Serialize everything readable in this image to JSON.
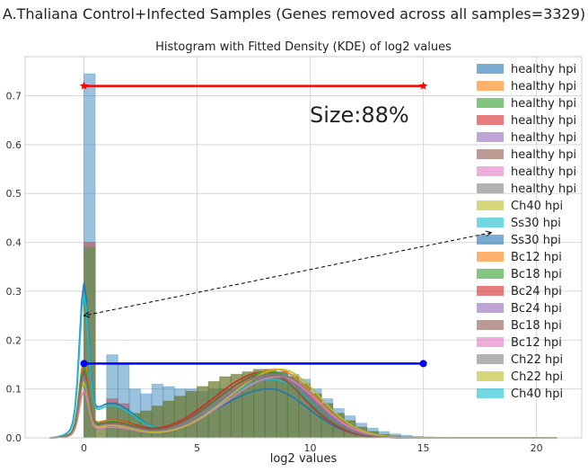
{
  "figure": {
    "suptitle": "A.Thaliana Control+Infected Samples (Genes removed across all samples=3329)"
  },
  "chart_data": {
    "type": "histogram",
    "title": "Histogram with Fitted Density (KDE) of log2 values",
    "xlabel": "log2 values",
    "ylabel": "",
    "xlim": [
      -2.6,
      22
    ],
    "ylim": [
      0,
      0.78
    ],
    "x_ticks": [
      0,
      5,
      10,
      15,
      20
    ],
    "y_ticks": [
      0.0,
      0.1,
      0.2,
      0.3,
      0.4,
      0.5,
      0.6,
      0.7
    ],
    "grid": true,
    "legend_position": "top-right",
    "annotation_text": "Size:88%",
    "legend_entries": [
      {
        "label": "healthy hpi",
        "color": "#1f77b4"
      },
      {
        "label": "healthy hpi",
        "color": "#ff7f0e"
      },
      {
        "label": "healthy hpi",
        "color": "#2ca02c"
      },
      {
        "label": "healthy hpi",
        "color": "#d62728"
      },
      {
        "label": "healthy hpi",
        "color": "#9467bd"
      },
      {
        "label": "healthy hpi",
        "color": "#8c564b"
      },
      {
        "label": "healthy hpi",
        "color": "#e377c2"
      },
      {
        "label": "healthy hpi",
        "color": "#7f7f7f"
      },
      {
        "label": "Ch40 hpi",
        "color": "#bcbd22"
      },
      {
        "label": "Ss30 hpi",
        "color": "#17becf"
      },
      {
        "label": "Ss30 hpi",
        "color": "#1f77b4"
      },
      {
        "label": "Bc12 hpi",
        "color": "#ff7f0e"
      },
      {
        "label": "Bc18 hpi",
        "color": "#2ca02c"
      },
      {
        "label": "Bc24 hpi",
        "color": "#d62728"
      },
      {
        "label": "Bc24 hpi",
        "color": "#9467bd"
      },
      {
        "label": "Bc18 hpi",
        "color": "#8c564b"
      },
      {
        "label": "Bc12 hpi",
        "color": "#e377c2"
      },
      {
        "label": "Ch22 hpi",
        "color": "#7f7f7f"
      },
      {
        "label": "Ch22 hpi",
        "color": "#bcbd22"
      },
      {
        "label": "Ch40 hpi",
        "color": "#17becf"
      }
    ],
    "histogram_bins": {
      "x": [
        -0.5,
        0.0,
        0.5,
        1.0,
        1.5,
        2.0,
        2.5,
        3.0,
        3.5,
        4.0,
        4.5,
        5.0,
        5.5,
        6.0,
        6.5,
        7.0,
        7.5,
        8.0,
        8.5,
        9.0,
        9.5,
        10.0,
        10.5,
        11.0,
        11.5,
        12.0,
        12.5,
        13.0,
        13.5,
        14.0,
        14.5,
        15.0,
        15.5,
        16.0,
        16.5,
        17.0,
        17.5,
        18.0,
        18.5,
        19.0,
        19.5,
        20.0,
        20.5
      ],
      "bin_width": 0.5
    },
    "series_histograms": [
      {
        "color": "#1f77b4",
        "values": [
          0,
          0.745,
          0,
          0.17,
          0.15,
          0.1,
          0.09,
          0.11,
          0.105,
          0.1,
          0.1,
          0.095,
          0.1,
          0.1,
          0.105,
          0.12,
          0.13,
          0.14,
          0.135,
          0.13,
          0.12,
          0.1,
          0.08,
          0.06,
          0.045,
          0.03,
          0.02,
          0.013,
          0.008,
          0.005,
          0.003,
          0.002,
          0.001,
          0.001,
          0,
          0,
          0,
          0,
          0,
          0,
          0,
          0,
          0
        ]
      },
      {
        "color": "#d62728",
        "values": [
          0,
          0.4,
          0.02,
          0.08,
          0.07,
          0.05,
          0.055,
          0.065,
          0.075,
          0.085,
          0.095,
          0.105,
          0.115,
          0.125,
          0.13,
          0.135,
          0.14,
          0.14,
          0.135,
          0.125,
          0.11,
          0.09,
          0.07,
          0.05,
          0.035,
          0.022,
          0.013,
          0.007,
          0.004,
          0.002,
          0.001,
          0,
          0,
          0,
          0,
          0,
          0,
          0,
          0,
          0,
          0,
          0,
          0
        ]
      },
      {
        "color": "#2ca02c",
        "values": [
          0,
          0.39,
          0.02,
          0.07,
          0.06,
          0.05,
          0.055,
          0.065,
          0.075,
          0.085,
          0.095,
          0.105,
          0.115,
          0.125,
          0.13,
          0.135,
          0.14,
          0.14,
          0.135,
          0.125,
          0.11,
          0.09,
          0.07,
          0.05,
          0.035,
          0.022,
          0.013,
          0.007,
          0.004,
          0.002,
          0.001,
          0,
          0,
          0,
          0,
          0,
          0,
          0,
          0,
          0,
          0,
          0,
          0
        ]
      }
    ],
    "kde_curves": [
      {
        "color": "#1f77b4",
        "peak_at_0": 0.28,
        "main_peak_x": 8.2,
        "main_peak_y": 0.1
      },
      {
        "color": "#17becf",
        "peak_at_0": 0.26,
        "main_peak_x": 8.3,
        "main_peak_y": 0.12
      },
      {
        "color": "#d62728",
        "peak_at_0": 0.14,
        "main_peak_x": 8.0,
        "main_peak_y": 0.135
      },
      {
        "color": "#ff7f0e",
        "peak_at_0": 0.14,
        "main_peak_x": 8.5,
        "main_peak_y": 0.14
      },
      {
        "color": "#2ca02c",
        "peak_at_0": 0.13,
        "main_peak_x": 8.2,
        "main_peak_y": 0.135
      },
      {
        "color": "#9467bd",
        "peak_at_0": 0.12,
        "main_peak_x": 8.4,
        "main_peak_y": 0.13
      },
      {
        "color": "#8c564b",
        "peak_at_0": 0.12,
        "main_peak_x": 8.1,
        "main_peak_y": 0.13
      },
      {
        "color": "#e377c2",
        "peak_at_0": 0.085,
        "main_peak_x": 8.6,
        "main_peak_y": 0.125
      },
      {
        "color": "#bcbd22",
        "peak_at_0": 0.1,
        "main_peak_x": 8.7,
        "main_peak_y": 0.14
      },
      {
        "color": "#7f7f7f",
        "peak_at_0": 0.11,
        "main_peak_x": 8.3,
        "main_peak_y": 0.13
      }
    ],
    "reference_lines": [
      {
        "name": "red-max-line",
        "color": "#ff0000",
        "x": [
          0,
          15
        ],
        "y": [
          0.72,
          0.72
        ],
        "marker": "star"
      },
      {
        "name": "blue-ref-line",
        "color": "#0000ff",
        "x": [
          0,
          15
        ],
        "y": [
          0.152,
          0.152
        ],
        "marker": "circle"
      }
    ],
    "arrow": {
      "from": [
        18,
        0.42
      ],
      "to": [
        0,
        0.25
      ]
    }
  }
}
